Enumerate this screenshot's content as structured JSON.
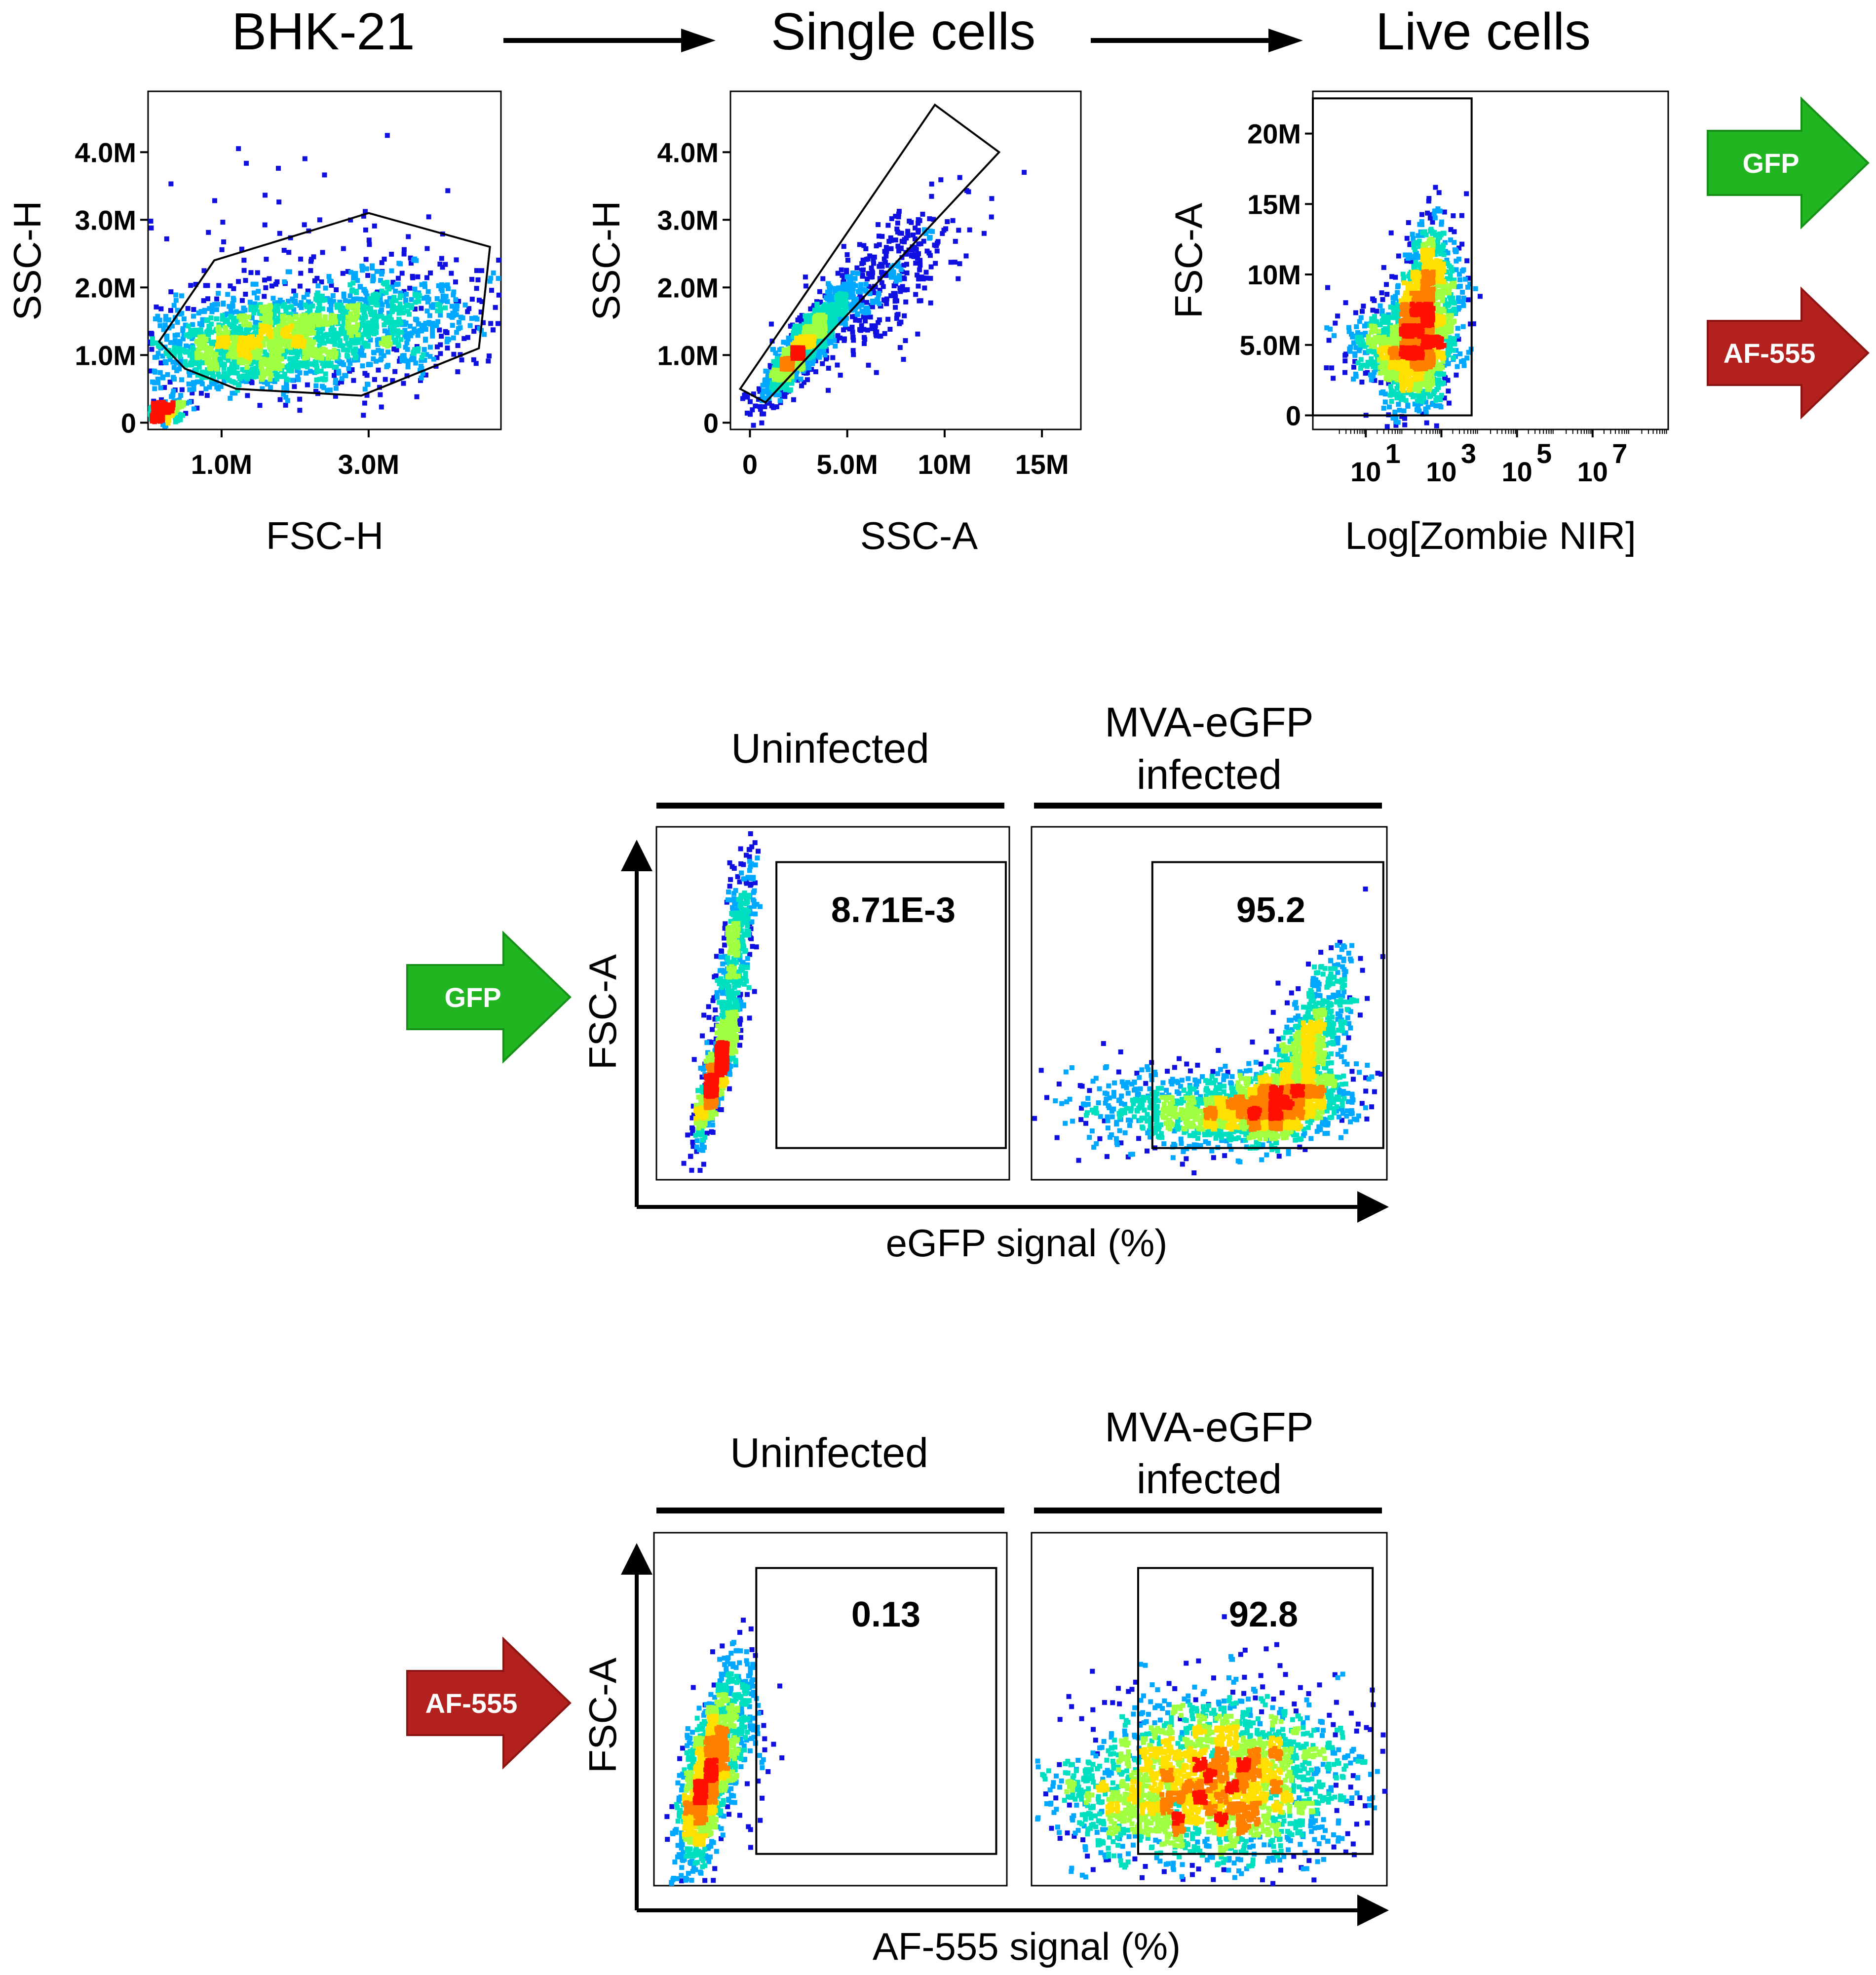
{
  "colors": {
    "gfp": "#22b522",
    "gfp_dark": "#179017",
    "af555": "#b3211f",
    "af555_dark": "#8c1514",
    "density": [
      "#1010e0",
      "#00a8ff",
      "#00e0c0",
      "#a0ff40",
      "#ffe000",
      "#ff8000",
      "#ff1000"
    ]
  },
  "gating_steps": [
    "BHK-21",
    "Single cells",
    "Live cells"
  ],
  "side_arrows": [
    "GFP",
    "AF-555"
  ],
  "chart_data": [
    {
      "type": "scatter",
      "title": "BHK-21",
      "xlabel": "FSC-H",
      "ylabel": "SSC-H",
      "xlim": [
        0,
        4800000
      ],
      "ylim": [
        -100000,
        4900000
      ],
      "xticks": [
        {
          "value": 1000000,
          "label": "1.0M"
        },
        {
          "value": 3000000,
          "label": "3.0M"
        }
      ],
      "yticks": [
        {
          "value": 0,
          "label": "0"
        },
        {
          "value": 1000000,
          "label": "1.0M"
        },
        {
          "value": 2000000,
          "label": "2.0M"
        },
        {
          "value": 3000000,
          "label": "3.0M"
        },
        {
          "value": 4000000,
          "label": "4.0M"
        }
      ],
      "clusters": [
        {
          "cx": 1500000,
          "cy": 1150000,
          "sx": 850000,
          "sy": 380000,
          "n": 1500,
          "rho": 0.3
        },
        {
          "cx": 3200000,
          "cy": 1500000,
          "sx": 900000,
          "sy": 450000,
          "n": 700,
          "rho": 0.2
        },
        {
          "cx": 150000,
          "cy": 150000,
          "sx": 150000,
          "sy": 80000,
          "n": 300,
          "rho": 0.3
        },
        {
          "cx": 2500000,
          "cy": 2500000,
          "sx": 1300000,
          "sy": 800000,
          "n": 60,
          "rho": 0
        }
      ],
      "gate": {
        "shape": "polygon",
        "points": [
          [
            150000,
            1200000
          ],
          [
            900000,
            2400000
          ],
          [
            3000000,
            3100000
          ],
          [
            4650000,
            2600000
          ],
          [
            4500000,
            1100000
          ],
          [
            2900000,
            400000
          ],
          [
            1200000,
            500000
          ],
          [
            500000,
            800000
          ]
        ]
      }
    },
    {
      "type": "scatter",
      "title": "Single cells",
      "xlabel": "SSC-A",
      "ylabel": "SSC-H",
      "xlim": [
        -1000000,
        17000000
      ],
      "ylim": [
        -100000,
        4900000
      ],
      "xticks": [
        {
          "value": 0,
          "label": "0"
        },
        {
          "value": 5000000,
          "label": "5.0M"
        },
        {
          "value": 10000000,
          "label": "10M"
        },
        {
          "value": 15000000,
          "label": "15M"
        }
      ],
      "yticks": [
        {
          "value": 0,
          "label": "0"
        },
        {
          "value": 1000000,
          "label": "1.0M"
        },
        {
          "value": 2000000,
          "label": "2.0M"
        },
        {
          "value": 3000000,
          "label": "3.0M"
        },
        {
          "value": 4000000,
          "label": "4.0M"
        }
      ],
      "clusters": [
        {
          "cx": 3000000,
          "cy": 1200000,
          "sx": 1200000,
          "sy": 450000,
          "n": 1100,
          "rho": 0.9
        },
        {
          "cx": 2300000,
          "cy": 1000000,
          "sx": 500000,
          "sy": 200000,
          "n": 500,
          "rho": 0.9
        },
        {
          "cx": 6500000,
          "cy": 2000000,
          "sx": 2000000,
          "sy": 600000,
          "n": 400,
          "rho": 0.7
        }
      ],
      "gate": {
        "shape": "polygon",
        "points": [
          [
            -500000,
            500000
          ],
          [
            9500000,
            4700000
          ],
          [
            12800000,
            4000000
          ],
          [
            800000,
            300000
          ]
        ]
      }
    },
    {
      "type": "scatter",
      "title": "Live cells",
      "xlabel": "Log[Zombie NIR]",
      "ylabel": "FSC-A",
      "xscale": "log",
      "xlim": [
        -0.4,
        9
      ],
      "ylim": [
        -1000000,
        23000000
      ],
      "xticks": [
        {
          "value": 1,
          "label": "10",
          "sup": "1"
        },
        {
          "value": 3,
          "label": "10",
          "sup": "3"
        },
        {
          "value": 5,
          "label": "10",
          "sup": "5"
        },
        {
          "value": 7,
          "label": "10",
          "sup": "7"
        }
      ],
      "yticks": [
        {
          "value": 0,
          "label": "0"
        },
        {
          "value": 5000000,
          "label": "5.0M"
        },
        {
          "value": 10000000,
          "label": "10M"
        },
        {
          "value": 15000000,
          "label": "15M"
        },
        {
          "value": 20000000,
          "label": "20M"
        }
      ],
      "clusters": [
        {
          "cx": 2.5,
          "cy": 5500000,
          "sx": 0.45,
          "sy": 2600000,
          "n": 1400,
          "rho": 0.3
        },
        {
          "cx": 2.6,
          "cy": 10000000,
          "sx": 0.3,
          "sy": 2500000,
          "n": 400,
          "rho": 0.2
        },
        {
          "cx": 1.4,
          "cy": 5000000,
          "sx": 0.5,
          "sy": 1500000,
          "n": 300,
          "rho": 0
        }
      ],
      "gate": {
        "shape": "rect",
        "x": [
          -0.4,
          3.8
        ],
        "y": [
          0,
          22500000
        ]
      }
    },
    {
      "type": "scatter",
      "group": "gfp",
      "condition": "Uninfected",
      "xlabel": "eGFP signal (%)",
      "ylabel": "FSC-A",
      "xlim": [
        0,
        100
      ],
      "ylim": [
        0,
        100
      ],
      "gate": {
        "shape": "rect",
        "x": [
          34,
          99
        ],
        "y": [
          9,
          90
        ]
      },
      "gate_value": "8.71E-3",
      "clusters": [
        {
          "cx": 17,
          "cy": 30,
          "sx": 3,
          "sy": 9,
          "n": 900,
          "rho": 0.85
        },
        {
          "cx": 22,
          "cy": 62,
          "sx": 3,
          "sy": 15,
          "n": 500,
          "rho": 0.7
        }
      ]
    },
    {
      "type": "scatter",
      "group": "gfp",
      "condition": "MVA-eGFP infected",
      "xlabel": "eGFP signal (%)",
      "ylabel": "FSC-A",
      "xlim": [
        0,
        100
      ],
      "ylim": [
        0,
        100
      ],
      "gate": {
        "shape": "rect",
        "x": [
          34,
          99
        ],
        "y": [
          9,
          90
        ]
      },
      "gate_value": "95.2",
      "clusters": [
        {
          "cx": 68,
          "cy": 21,
          "sx": 11,
          "sy": 5,
          "n": 1300,
          "rho": 0.3
        },
        {
          "cx": 78,
          "cy": 38,
          "sx": 6,
          "sy": 12,
          "n": 700,
          "rho": 0.7
        },
        {
          "cx": 40,
          "cy": 20,
          "sx": 14,
          "sy": 6,
          "n": 500,
          "rho": 0
        }
      ]
    },
    {
      "type": "scatter",
      "group": "af555",
      "condition": "Uninfected",
      "xlabel": "AF-555 signal (%)",
      "ylabel": "FSC-A",
      "xlim": [
        0,
        100
      ],
      "ylim": [
        0,
        100
      ],
      "gate": {
        "shape": "rect",
        "x": [
          29,
          97
        ],
        "y": [
          9,
          90
        ]
      },
      "gate_value": "0.13",
      "clusters": [
        {
          "cx": 15,
          "cy": 30,
          "sx": 4,
          "sy": 12,
          "n": 1300,
          "rho": 0.6
        },
        {
          "cx": 24,
          "cy": 48,
          "sx": 4,
          "sy": 12,
          "n": 200,
          "rho": 0
        }
      ]
    },
    {
      "type": "scatter",
      "group": "af555",
      "condition": "MVA-eGFP infected",
      "xlabel": "AF-555 signal (%)",
      "ylabel": "FSC-A",
      "xlim": [
        0,
        100
      ],
      "ylim": [
        0,
        100
      ],
      "gate": {
        "shape": "rect",
        "x": [
          30,
          96
        ],
        "y": [
          9,
          90
        ]
      },
      "gate_value": "92.8",
      "clusters": [
        {
          "cx": 55,
          "cy": 30,
          "sx": 17,
          "sy": 12,
          "n": 2300,
          "rho": 0
        },
        {
          "cx": 25,
          "cy": 25,
          "sx": 12,
          "sy": 8,
          "n": 400,
          "rho": 0
        }
      ]
    }
  ]
}
